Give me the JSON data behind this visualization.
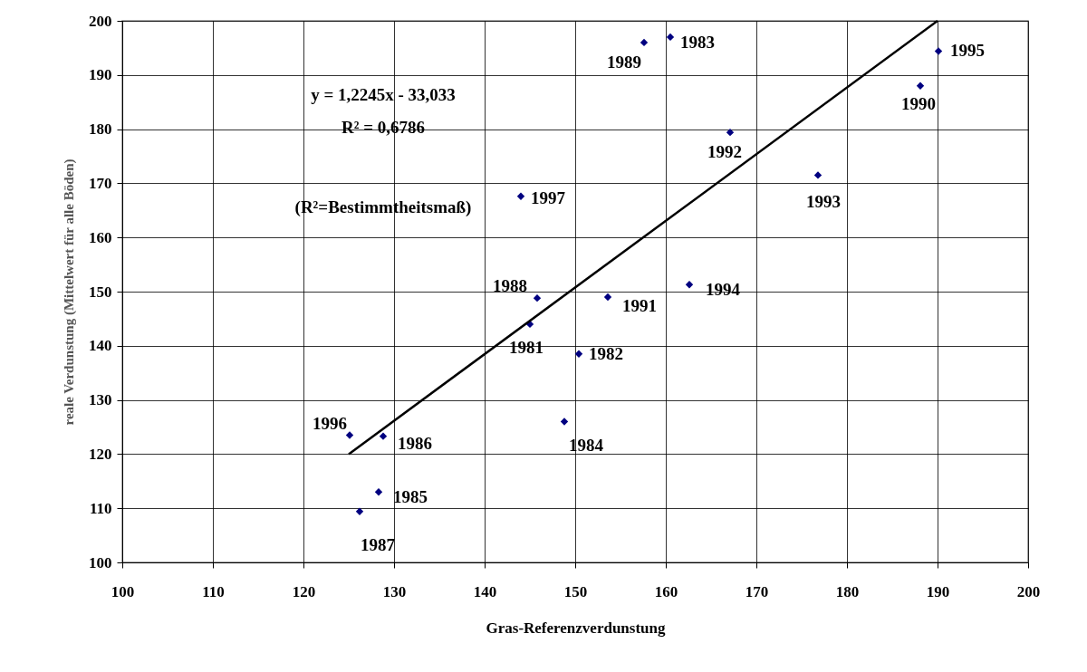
{
  "chart_data": {
    "type": "scatter",
    "xlabel": "Gras-Referenzverdunstung",
    "ylabel": "reale Verdunstung (Mittelwert für alle Böden)",
    "x": [
      145.0,
      150.4,
      160.5,
      148.8,
      128.3,
      128.8,
      126.2,
      145.8,
      157.6,
      188.1,
      153.6,
      167.1,
      176.8,
      162.6,
      190.1,
      125.1,
      144.0
    ],
    "series": [
      {
        "color": "#000080",
        "marker": "diamond",
        "values": [
          144.0,
          138.5,
          197.0,
          126.0,
          113.0,
          123.3,
          109.4,
          148.8,
          196.0,
          188.0,
          149.0,
          179.4,
          171.5,
          151.3,
          194.4,
          123.5,
          167.6
        ]
      },
      {
        "type": "line",
        "color": "#000000",
        "x": [
          125,
          190
        ],
        "values": [
          120,
          200
        ]
      }
    ],
    "xlim": [
      100,
      200
    ],
    "ylim": [
      100,
      200
    ],
    "xticks": [
      100,
      110,
      120,
      130,
      140,
      150,
      160,
      170,
      180,
      190,
      200
    ],
    "yticks": [
      100,
      110,
      120,
      130,
      140,
      150,
      160,
      170,
      180,
      190,
      200
    ],
    "grid": true,
    "annotations": [
      "y = 1,2245x - 33,033",
      "R² = 0,6786",
      "(R²=Bestimmtheitsmaß)",
      {
        "text": "1981",
        "x": 145.0,
        "y": 144.0
      },
      {
        "text": "1982",
        "x": 150.4,
        "y": 138.5
      },
      {
        "text": "1983",
        "x": 160.5,
        "y": 197.0
      },
      {
        "text": "1984",
        "x": 148.8,
        "y": 126.0
      },
      {
        "text": "1985",
        "x": 128.3,
        "y": 113.0
      },
      {
        "text": "1986",
        "x": 128.8,
        "y": 123.3
      },
      {
        "text": "1987",
        "x": 126.2,
        "y": 109.4
      },
      {
        "text": "1988",
        "x": 145.8,
        "y": 148.8
      },
      {
        "text": "1989",
        "x": 157.6,
        "y": 196.0
      },
      {
        "text": "1990",
        "x": 188.1,
        "y": 188.0
      },
      {
        "text": "1991",
        "x": 153.6,
        "y": 149.0
      },
      {
        "text": "1992",
        "x": 167.1,
        "y": 179.4
      },
      {
        "text": "1993",
        "x": 176.8,
        "y": 171.5
      },
      {
        "text": "1994",
        "x": 162.6,
        "y": 151.3
      },
      {
        "text": "1995",
        "x": 190.1,
        "y": 194.4
      },
      {
        "text": "1996",
        "x": 125.1,
        "y": 123.5
      },
      {
        "text": "1997",
        "x": 144.0,
        "y": 167.6
      }
    ]
  }
}
